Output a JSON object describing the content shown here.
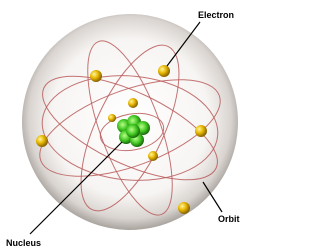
{
  "nodes": [
    {
      "label": "Electron"
    },
    {
      "label": "Orbit"
    },
    {
      "label": "Nucleus"
    }
  ]
}
